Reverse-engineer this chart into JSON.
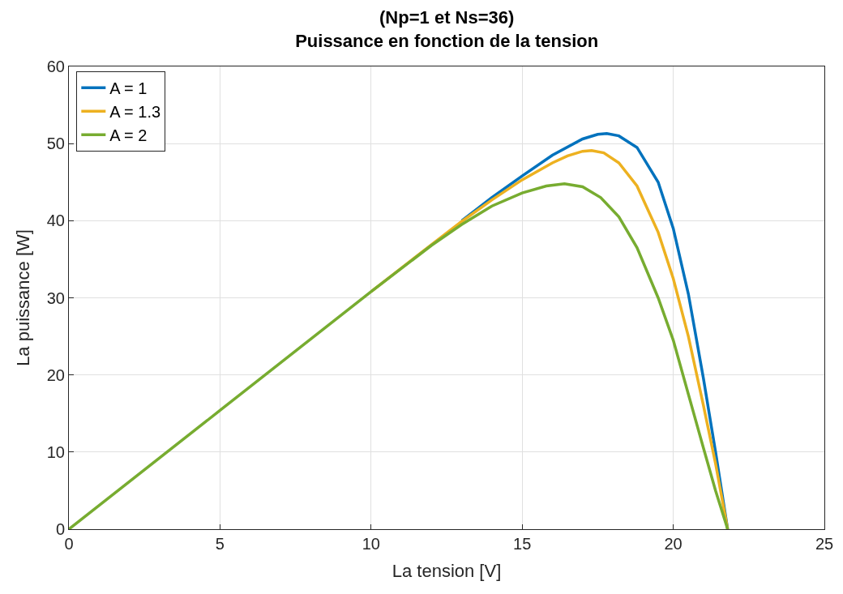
{
  "chart_data": {
    "type": "line",
    "title": "(Np=1 et Ns=36)",
    "subtitle": "Puissance en fonction de la tension",
    "xlabel": "La tension [V]",
    "ylabel": "La puissance [W]",
    "xlim": [
      0,
      25
    ],
    "xticks": [
      0,
      5,
      10,
      15,
      20,
      25
    ],
    "ylim": [
      0,
      60
    ],
    "yticks": [
      0,
      10,
      20,
      30,
      40,
      50,
      60
    ],
    "grid": true,
    "legend": "top left",
    "marker": "none",
    "line_style": "solid",
    "series": [
      {
        "name": "A = 1",
        "color": "#0072bd",
        "x": [
          13,
          14,
          15,
          16,
          17,
          17.5,
          17.8,
          18.2,
          18.8,
          19.5,
          20,
          20.5,
          21,
          21.4,
          21.8
        ],
        "values": [
          40.0,
          43.0,
          45.8,
          48.5,
          50.6,
          51.2,
          51.3,
          51.0,
          49.5,
          45.0,
          39.0,
          30.5,
          19.5,
          10.0,
          0
        ]
      },
      {
        "name": "A = 1.3",
        "color": "#edb120",
        "x": [
          10,
          12,
          13,
          14,
          15,
          16,
          16.5,
          17,
          17.3,
          17.7,
          18.2,
          18.8,
          19.5,
          20,
          20.5,
          21,
          21.4,
          21.8
        ],
        "values": [
          30.8,
          36.9,
          39.9,
          42.7,
          45.3,
          47.5,
          48.4,
          49.0,
          49.1,
          48.8,
          47.5,
          44.5,
          38.5,
          32.5,
          25.0,
          16.0,
          8.5,
          0
        ]
      },
      {
        "name": "A = 2",
        "color": "#77ac30",
        "x": [
          0,
          5,
          10,
          12,
          13,
          14,
          15,
          15.8,
          16.4,
          17,
          17.6,
          18.2,
          18.8,
          19.5,
          20,
          20.5,
          21,
          21.4,
          21.8
        ],
        "values": [
          0,
          15.4,
          30.8,
          36.8,
          39.5,
          41.9,
          43.6,
          44.5,
          44.8,
          44.4,
          43.0,
          40.5,
          36.5,
          30.0,
          24.5,
          17.5,
          10.5,
          5.0,
          0
        ]
      }
    ]
  }
}
